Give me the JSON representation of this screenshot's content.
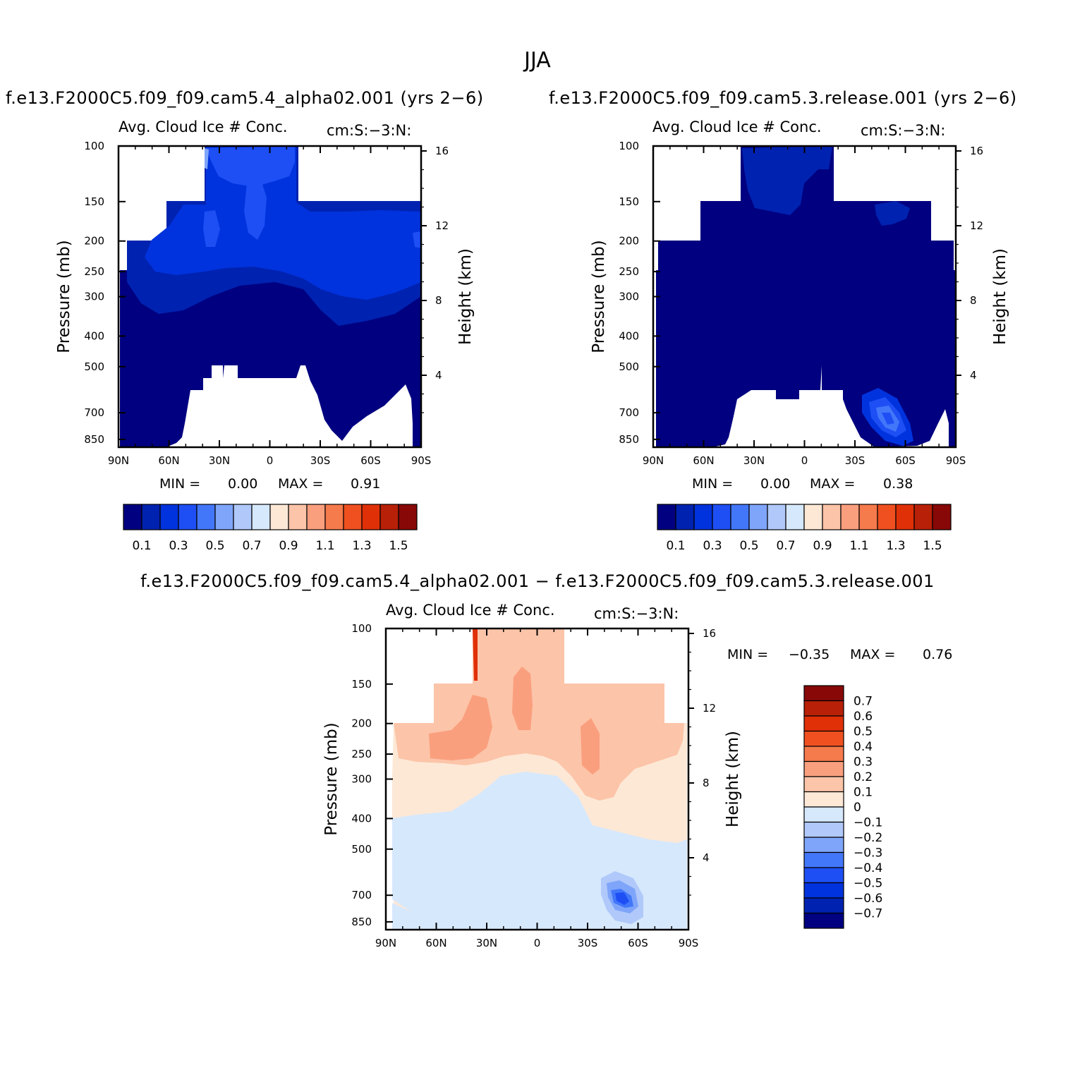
{
  "figure": {
    "title": "JJA",
    "diff_title": "f.e13.F2000C5.f09_f09.cam5.4_alpha02.001 − f.e13.F2000C5.f09_f09.cam5.3.release.001"
  },
  "panels": [
    {
      "case_title": "f.e13.F2000C5.f09_f09.cam5.4_alpha02.001 (yrs 2−6)",
      "variable": "Avg. Cloud Ice # Conc.",
      "units": "cm:S:−3:N:",
      "min_label": "MIN =",
      "min_value": "0.00",
      "max_label": "MAX =",
      "max_value": "0.91"
    },
    {
      "case_title": "f.e13.F2000C5.f09_f09.cam5.3.release.001 (yrs 2−6)",
      "variable": "Avg. Cloud Ice # Conc.",
      "units": "cm:S:−3:N:",
      "min_label": "MIN =",
      "min_value": "0.00",
      "max_label": "MAX =",
      "max_value": "0.38"
    },
    {
      "case_title": "",
      "variable": "Avg. Cloud Ice # Conc.",
      "units": "cm:S:−3:N:",
      "min_label": "MIN =",
      "min_value": "−0.35",
      "max_label": "MAX =",
      "max_value": "0.76"
    }
  ],
  "axes": {
    "x_ticks": [
      "90N",
      "60N",
      "30N",
      "0",
      "30S",
      "60S",
      "90S"
    ],
    "y_left_ticks": [
      "100",
      "150",
      "200",
      "250",
      "300",
      "400",
      "500",
      "700",
      "850"
    ],
    "y_left_label": "Pressure (mb)",
    "y_right_ticks": [
      "16",
      "12",
      "8",
      "4"
    ],
    "y_right_label": "Height (km)"
  },
  "colorbar_abs": {
    "labels": [
      "0.1",
      "0.3",
      "0.5",
      "0.7",
      "0.9",
      "1.1",
      "1.3",
      "1.5"
    ],
    "colors": [
      "#000080",
      "#0022b0",
      "#0033dd",
      "#1e4ff5",
      "#4377fa",
      "#7fa5fa",
      "#b0c9fa",
      "#d6e8fc",
      "#fde8d6",
      "#fcc4a8",
      "#fa9f7e",
      "#f57a4c",
      "#f05020",
      "#e03008",
      "#b82008",
      "#880808"
    ]
  },
  "colorbar_diff": {
    "labels": [
      "0.7",
      "0.6",
      "0.5",
      "0.4",
      "0.3",
      "0.2",
      "0.1",
      "0",
      "−0.1",
      "−0.2",
      "−0.3",
      "−0.4",
      "−0.5",
      "−0.6",
      "−0.7"
    ],
    "colors": [
      "#880808",
      "#b82008",
      "#e03008",
      "#f05020",
      "#f57a4c",
      "#fa9f7e",
      "#fcc4a8",
      "#fde8d6",
      "#d6e8fc",
      "#b0c9fa",
      "#7fa5fa",
      "#4377fa",
      "#1e4ff5",
      "#0033dd",
      "#0022b0",
      "#000080"
    ]
  },
  "chart_data": [
    {
      "type": "heatmap",
      "title": "Avg. Cloud Ice # Conc.",
      "case": "f.e13.F2000C5.f09_f09.cam5.4_alpha02.001 (yrs 2−6)",
      "x": "latitude 90N to 90S",
      "y": "pressure (mb) 100 to 850",
      "levels": [
        0.1,
        0.2,
        0.3,
        0.4,
        0.5,
        0.6,
        0.7,
        0.8,
        0.9,
        1.0,
        1.1,
        1.2,
        1.3,
        1.4,
        1.5
      ],
      "min": 0.0,
      "max": 0.91
    },
    {
      "type": "heatmap",
      "title": "Avg. Cloud Ice # Conc.",
      "case": "f.e13.F2000C5.f09_f09.cam5.3.release.001 (yrs 2−6)",
      "x": "latitude 90N to 90S",
      "y": "pressure (mb) 100 to 850",
      "levels": [
        0.1,
        0.2,
        0.3,
        0.4,
        0.5,
        0.6,
        0.7,
        0.8,
        0.9,
        1.0,
        1.1,
        1.2,
        1.3,
        1.4,
        1.5
      ],
      "min": 0.0,
      "max": 0.38
    },
    {
      "type": "heatmap",
      "title": "Avg. Cloud Ice # Conc.",
      "case": "difference",
      "x": "latitude 90N to 90S",
      "y": "pressure (mb) 100 to 850",
      "levels": [
        -0.7,
        -0.6,
        -0.5,
        -0.4,
        -0.3,
        -0.2,
        -0.1,
        0,
        0.1,
        0.2,
        0.3,
        0.4,
        0.5,
        0.6,
        0.7
      ],
      "min": -0.35,
      "max": 0.76
    }
  ]
}
